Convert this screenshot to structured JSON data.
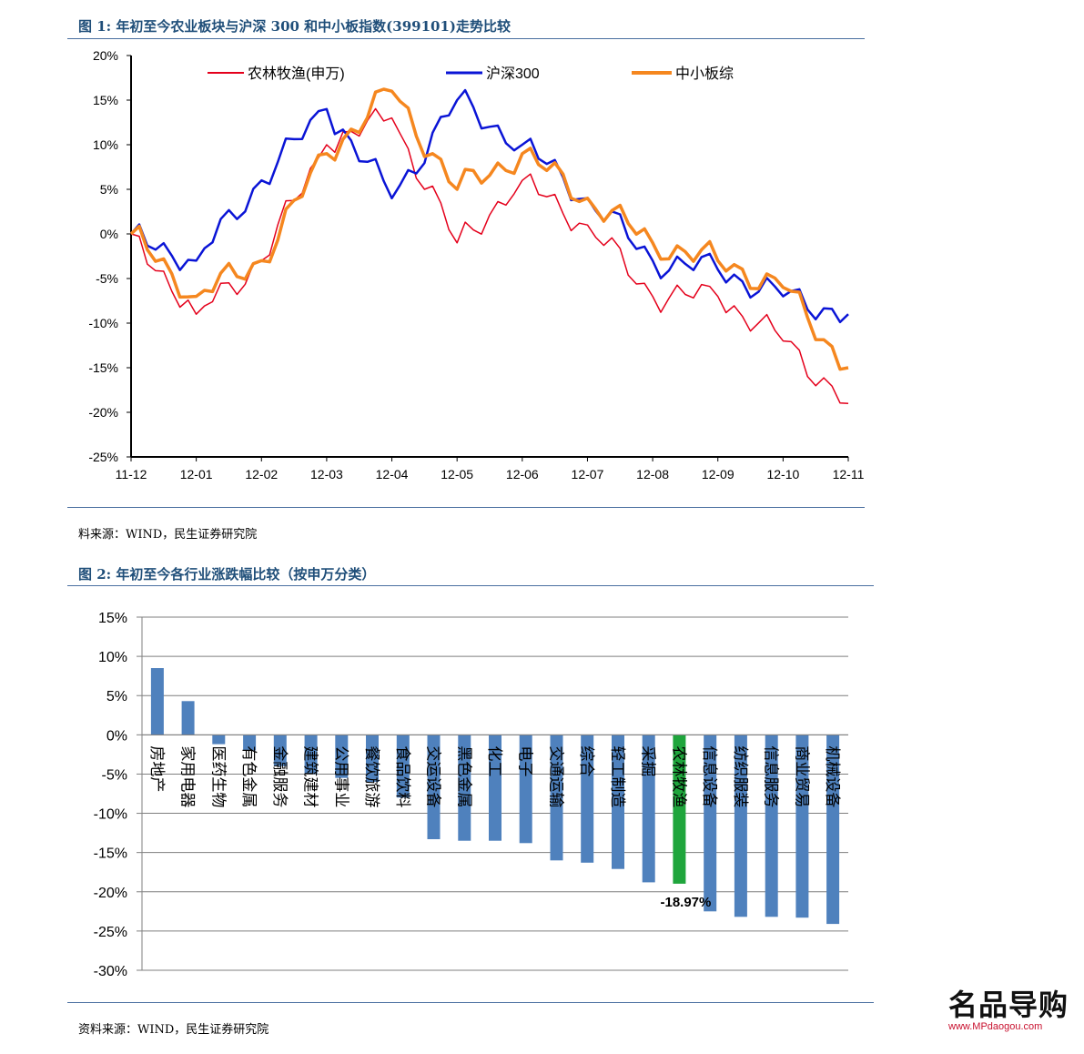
{
  "figure1": {
    "title": "图 1:  年初至今农业板块与沪深 300 和中小板指数(399101)走势比较",
    "source": "料来源：WIND，民生证券研究院"
  },
  "figure2": {
    "title": "图 2:  年初至今各行业涨跌幅比较（按申万分类）",
    "source": "资料来源：WIND，民生证券研究院"
  },
  "logo": {
    "text": "名品导购",
    "url": "www.MPdaogou.com"
  },
  "colors": {
    "agri": "#e4001b",
    "hs300": "#0a14d6",
    "sme": "#f5871f",
    "bar": "#4f81bd",
    "bar_highlight": "#1fa53c"
  },
  "chart_data": [
    {
      "type": "line",
      "title": "年初至今农业板块与沪深 300 和中小板指数(399101)走势比较",
      "x": [
        "11-12",
        "12-01",
        "12-02",
        "12-03",
        "12-04",
        "12-05",
        "12-06",
        "12-07",
        "12-08",
        "12-09",
        "12-10",
        "12-11"
      ],
      "ylim": [
        -25,
        20
      ],
      "yticks": [
        "20%",
        "15%",
        "10%",
        "5%",
        "0%",
        "-5%",
        "-10%",
        "-15%",
        "-20%",
        "-25%"
      ],
      "series": [
        {
          "name": "农林牧渔(申万)",
          "values": [
            0,
            -9,
            -3,
            10,
            13,
            -1,
            6,
            1,
            -7,
            -7,
            -12,
            -19
          ]
        },
        {
          "name": "沪深300",
          "values": [
            0,
            -3,
            6,
            14,
            4,
            15,
            10,
            4,
            -3,
            -4,
            -7,
            -9
          ]
        },
        {
          "name": "中小板综",
          "values": [
            0,
            -7,
            -3,
            9,
            16,
            5,
            9,
            4,
            -1,
            -3,
            -6,
            -15
          ]
        }
      ]
    },
    {
      "type": "bar",
      "title": "年初至今各行业涨跌幅比较（按申万分类）",
      "ylim": [
        -30,
        15
      ],
      "yticks": [
        "15%",
        "10%",
        "5%",
        "0%",
        "-5%",
        "-10%",
        "-15%",
        "-20%",
        "-25%",
        "-30%"
      ],
      "categories": [
        "房地产",
        "家用电器",
        "医药生物",
        "有色金属",
        "金融服务",
        "建筑建材",
        "公用事业",
        "餐饮旅游",
        "食品饮料",
        "交运设备",
        "黑色金属",
        "化工",
        "电子",
        "交通运输",
        "综合",
        "轻工制造",
        "采掘",
        "农林牧渔",
        "信息设备",
        "纺织服装",
        "信息服务",
        "商业贸易",
        "机械设备"
      ],
      "values": [
        8.5,
        4.3,
        -1.2,
        -2.0,
        -4.0,
        -5.0,
        -5.5,
        -6.0,
        -8.0,
        -13.3,
        -13.5,
        -13.5,
        -13.8,
        -16.0,
        -16.3,
        -17.1,
        -18.8,
        -18.97,
        -22.5,
        -23.2,
        -23.2,
        -23.3,
        -24.1
      ],
      "highlight_index": 17,
      "highlight_label": "-18.97%"
    }
  ]
}
